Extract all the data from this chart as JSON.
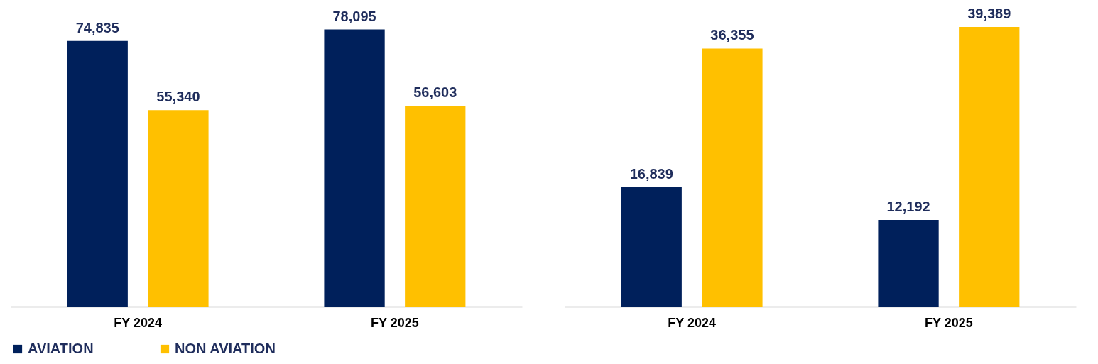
{
  "chart_data": [
    {
      "type": "bar",
      "categories": [
        "FY 2024",
        "FY 2025"
      ],
      "legend": "bottom",
      "series": [
        {
          "name": "AVIATION",
          "color": "#00205b",
          "values": [
            74835,
            78095
          ],
          "value_labels": [
            "74,835",
            "78,095"
          ]
        },
        {
          "name": "NON AVIATION",
          "color": "#ffc000",
          "values": [
            55340,
            56603
          ],
          "value_labels": [
            "55,340",
            "56,603"
          ]
        }
      ]
    },
    {
      "type": "bar",
      "categories": [
        "FY 2024",
        "FY 2025"
      ],
      "legend": "bottom",
      "series": [
        {
          "name": "AVIATION",
          "color": "#00205b",
          "values": [
            16839,
            12192
          ],
          "value_labels": [
            "16,839",
            "12,192"
          ]
        },
        {
          "name": "NON AVIATION",
          "color": "#ffc000",
          "values": [
            36355,
            39389
          ],
          "value_labels": [
            "36,355",
            "39,389"
          ]
        }
      ]
    }
  ]
}
